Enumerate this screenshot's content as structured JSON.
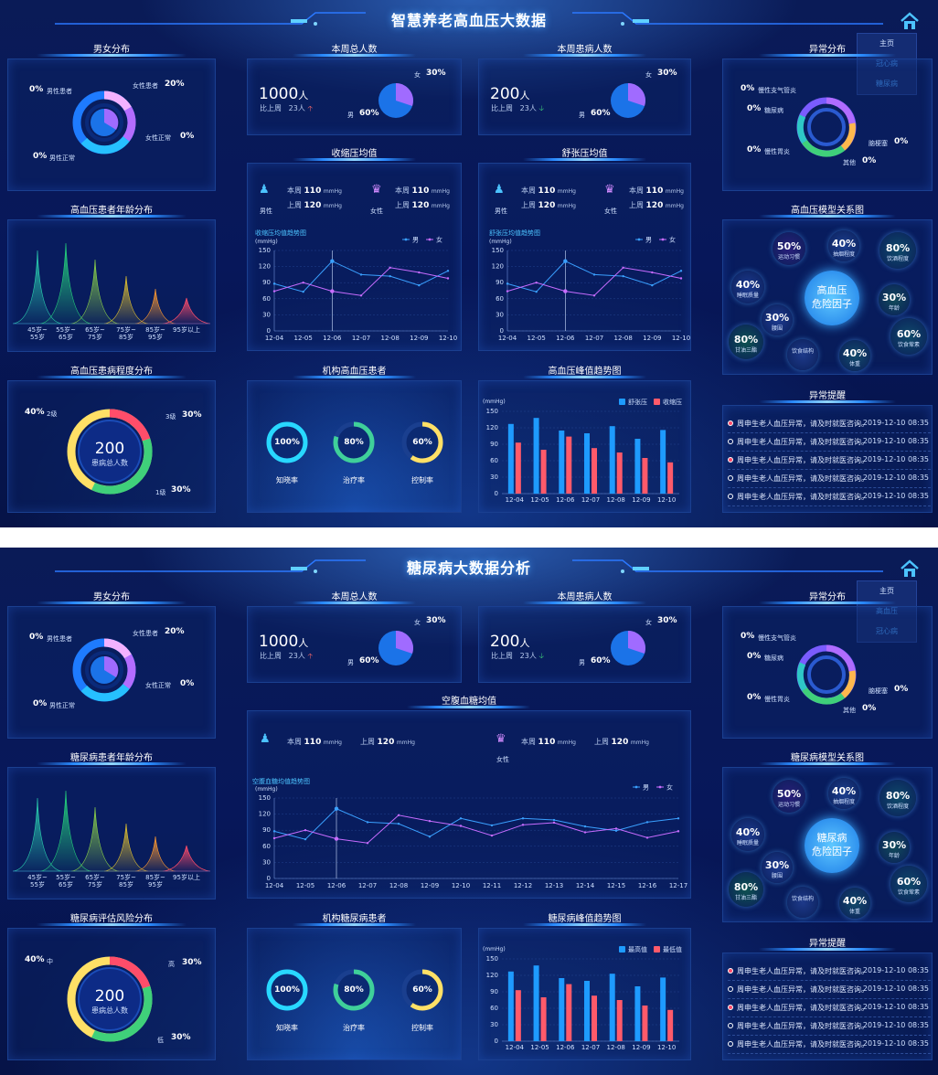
{
  "top": {
    "title": "智慧养老高血压大数据",
    "menu": [
      "主页",
      "冠心病",
      "糖尿病"
    ],
    "gender_title": "男女分布",
    "gender": {
      "male_patient": "男性患者",
      "male_patient_pct": "0%",
      "female_patient": "女性患者",
      "female_patient_pct": "20%",
      "female_normal": "女性正常",
      "female_normal_pct": "0%",
      "male_normal": "男性正常",
      "male_normal_pct": "0%"
    },
    "age_title": "高血压患者年龄分布",
    "age_labels": [
      "45岁~\n55岁",
      "55岁~\n65岁",
      "65岁~\n75岁",
      "75岁~\n85岁",
      "85岁~\n95岁",
      "95岁以上"
    ],
    "severity_title": "高血压患病程度分布",
    "severity": {
      "center_value": "200",
      "center_label": "患病总人数",
      "l2": "2级",
      "l2_pct": "40%",
      "l3": "3级",
      "l3_pct": "30%",
      "l1": "1级",
      "l1_pct": "30%"
    },
    "weekly_total_title": "本周总人数",
    "weekly_total": {
      "value": "1000",
      "unit": "人",
      "compare": "比上周",
      "delta": "23人",
      "female": "女",
      "female_pct": "30%",
      "male": "男",
      "male_pct": "60%"
    },
    "weekly_sick_title": "本周患病人数",
    "weekly_sick": {
      "value": "200",
      "unit": "人",
      "compare": "比上周",
      "delta": "23人",
      "female": "女",
      "female_pct": "30%",
      "male": "男",
      "male_pct": "60%"
    },
    "sys_title": "收缩压均值",
    "dia_title": "舒张压均值",
    "bp": {
      "this_week": "本周",
      "last_week": "上周",
      "val1": "110",
      "val2": "120",
      "unit": "mmHg",
      "male": "男性",
      "female": "女性"
    },
    "sys_chart_title": "收缩压均值趋势图",
    "dia_chart_title": "舒张压均值趋势图",
    "mmhg": "(mmHg)",
    "org_title": "机构高血压患者",
    "org": [
      {
        "pct": "100%",
        "label": "知晓率"
      },
      {
        "pct": "80%",
        "label": "治疗率"
      },
      {
        "pct": "60%",
        "label": "控制率"
      }
    ],
    "peak_title": "高血压峰值趋势图",
    "peak_legend": [
      "舒张压",
      "收缩压"
    ],
    "abnormal_title": "异常分布",
    "abnormal": {
      "a1": "慢性支气管炎",
      "a1_pct": "0%",
      "a2": "糖尿病",
      "a2_pct": "0%",
      "a3": "慢性胃炎",
      "a3_pct": "0%",
      "a4": "脑梗塞",
      "a4_pct": "0%",
      "a5": "其他",
      "a5_pct": "0%"
    },
    "model_title": "高血压模型关系图",
    "model_center": "高血压\n危险因子",
    "model": [
      {
        "pct": "50%",
        "label": "运动习惯"
      },
      {
        "pct": "40%",
        "label": "抽烟程度"
      },
      {
        "pct": "80%",
        "label": "饮酒程度"
      },
      {
        "pct": "40%",
        "label": "睡眠质量"
      },
      {
        "pct": "30%",
        "label": "年龄"
      },
      {
        "pct": "30%",
        "label": "腰围"
      },
      {
        "pct": "80%",
        "label": "甘油三酯"
      },
      {
        "pct": "",
        "label": "饮食结构"
      },
      {
        "pct": "40%",
        "label": "体重"
      },
      {
        "pct": "60%",
        "label": "饮食荤素"
      }
    ],
    "alert_title": "异常提醒",
    "alerts": [
      {
        "msg": "周申生老人血压异常，请及时就医咨询。",
        "time": "2019-12-10 08:35",
        "red": true
      },
      {
        "msg": "周申生老人血压异常，请及时就医咨询。",
        "time": "2019-12-10 08:35",
        "red": false
      },
      {
        "msg": "周申生老人血压异常，请及时就医咨询。",
        "time": "2019-12-10 08:35",
        "red": true
      },
      {
        "msg": "周申生老人血压异常，请及时就医咨询。",
        "time": "2019-12-10 08:35",
        "red": false
      },
      {
        "msg": "周申生老人血压异常，请及时就医咨询。",
        "time": "2019-12-10 08:35",
        "red": false
      }
    ]
  },
  "bottom": {
    "title": "糖尿病大数据分析",
    "menu": [
      "主页",
      "高血压",
      "冠心病"
    ],
    "gender_title": "男女分布",
    "gender": {
      "male_patient": "男性患者",
      "male_patient_pct": "0%",
      "female_patient": "女性患者",
      "female_patient_pct": "20%",
      "female_normal": "女性正常",
      "female_normal_pct": "0%",
      "male_normal": "男性正常",
      "male_normal_pct": "0%"
    },
    "age_title": "糖尿病患者年龄分布",
    "age_labels": [
      "45岁~\n55岁",
      "55岁~\n65岁",
      "65岁~\n75岁",
      "75岁~\n85岁",
      "85岁~\n95岁",
      "95岁以上"
    ],
    "severity_title": "糖尿病评估风险分布",
    "severity": {
      "center_value": "200",
      "center_label": "患病总人数",
      "l2": "中",
      "l2_pct": "40%",
      "l3": "高",
      "l3_pct": "30%",
      "l1": "低",
      "l1_pct": "30%"
    },
    "weekly_total_title": "本周总人数",
    "weekly_total": {
      "value": "1000",
      "unit": "人",
      "compare": "比上周",
      "delta": "23人",
      "female": "女",
      "female_pct": "30%",
      "male": "男",
      "male_pct": "60%"
    },
    "weekly_sick_title": "本周患病人数",
    "weekly_sick": {
      "value": "200",
      "unit": "人",
      "compare": "比上周",
      "delta": "23人",
      "female": "女",
      "female_pct": "30%",
      "male": "男",
      "male_pct": "60%"
    },
    "glucose_title": "空腹血糖均值",
    "bp": {
      "this_week": "本周",
      "last_week": "上周",
      "val1": "110",
      "val2": "120",
      "unit": "mmHg",
      "female": "女性"
    },
    "glucose_chart_title": "空腹血糖均值趋势图",
    "mmhg": "(mmHg)",
    "org_title": "机构糖尿病患者",
    "org": [
      {
        "pct": "100%",
        "label": "知晓率"
      },
      {
        "pct": "80%",
        "label": "治疗率"
      },
      {
        "pct": "60%",
        "label": "控制率"
      }
    ],
    "peak_title": "糖尿病峰值趋势图",
    "peak_legend": [
      "最高值",
      "最低值"
    ],
    "abnormal_title": "异常分布",
    "abnormal": {
      "a1": "慢性支气管炎",
      "a1_pct": "0%",
      "a2": "糖尿病",
      "a2_pct": "0%",
      "a3": "慢性胃炎",
      "a3_pct": "0%",
      "a4": "脑梗塞",
      "a4_pct": "0%",
      "a5": "其他",
      "a5_pct": "0%"
    },
    "model_title": "糖尿病模型关系图",
    "model_center": "糖尿病\n危险因子",
    "model": [
      {
        "pct": "50%",
        "label": "运动习惯"
      },
      {
        "pct": "40%",
        "label": "抽烟程度"
      },
      {
        "pct": "80%",
        "label": "饮酒程度"
      },
      {
        "pct": "40%",
        "label": "睡眠质量"
      },
      {
        "pct": "30%",
        "label": "年龄"
      },
      {
        "pct": "30%",
        "label": "腰围"
      },
      {
        "pct": "80%",
        "label": "甘油三酯"
      },
      {
        "pct": "",
        "label": "饮食结构"
      },
      {
        "pct": "40%",
        "label": "体重"
      },
      {
        "pct": "60%",
        "label": "饮食荤素"
      }
    ],
    "alert_title": "异常提醒",
    "alerts": [
      {
        "msg": "周申生老人血压异常，请及时就医咨询。",
        "time": "2019-12-10 08:35",
        "red": true
      },
      {
        "msg": "周申生老人血压异常，请及时就医咨询。",
        "time": "2019-12-10 08:35",
        "red": false
      },
      {
        "msg": "周申生老人血压异常，请及时就医咨询。",
        "time": "2019-12-10 08:35",
        "red": true
      },
      {
        "msg": "周申生老人血压异常，请及时就医咨询。",
        "time": "2019-12-10 08:35",
        "red": false
      },
      {
        "msg": "周申生老人血压异常，请及时就医咨询。",
        "time": "2019-12-10 08:35",
        "red": false
      }
    ]
  },
  "colors": {
    "male_line": "#3aa0ff",
    "female_line": "#c86cff",
    "bar_blue": "#1e9bff",
    "bar_red": "#ff5a6a",
    "yellow": "#ffe066",
    "red": "#ff4d6a",
    "green": "#3fd07a"
  },
  "chart_data": [
    {
      "type": "line",
      "title": "收缩压均值趋势图",
      "ylabel": "(mmHg)",
      "x": [
        "12-04",
        "12-05",
        "12-06",
        "12-07",
        "12-08",
        "12-09",
        "12-10"
      ],
      "ylim": [
        0,
        150
      ],
      "series": [
        {
          "name": "男",
          "values": [
            88,
            73,
            130,
            105,
            102,
            85,
            112
          ]
        },
        {
          "name": "女",
          "values": [
            74,
            90,
            74,
            66,
            118,
            109,
            98
          ]
        }
      ]
    },
    {
      "type": "line",
      "title": "舒张压均值趋势图",
      "ylabel": "(mmHg)",
      "x": [
        "12-04",
        "12-05",
        "12-06",
        "12-07",
        "12-08",
        "12-09",
        "12-10"
      ],
      "ylim": [
        0,
        150
      ],
      "series": [
        {
          "name": "男",
          "values": [
            88,
            73,
            130,
            105,
            102,
            85,
            112
          ]
        },
        {
          "name": "女",
          "values": [
            74,
            90,
            74,
            66,
            118,
            109,
            98
          ]
        }
      ]
    },
    {
      "type": "bar",
      "title": "高血压峰值趋势图",
      "ylabel": "(mmHg)",
      "categories": [
        "12-04",
        "12-05",
        "12-06",
        "12-07",
        "12-08",
        "12-09",
        "12-10"
      ],
      "ylim": [
        0,
        150
      ],
      "series": [
        {
          "name": "舒张压",
          "values": [
            127,
            138,
            115,
            110,
            123,
            100,
            116
          ]
        },
        {
          "name": "收缩压",
          "values": [
            93,
            80,
            104,
            83,
            75,
            65,
            57
          ]
        }
      ]
    },
    {
      "type": "line",
      "title": "空腹血糖均值趋势图",
      "ylabel": "(mmHg)",
      "x": [
        "12-04",
        "12-05",
        "12-06",
        "12-07",
        "12-08",
        "12-09",
        "12-10",
        "12-11",
        "12-12",
        "12-13",
        "12-14",
        "12-15",
        "12-16",
        "12-17"
      ],
      "ylim": [
        0,
        150
      ],
      "series": [
        {
          "name": "男",
          "values": [
            88,
            73,
            130,
            105,
            102,
            78,
            112,
            99,
            112,
            109,
            97,
            89,
            105,
            112
          ]
        },
        {
          "name": "女",
          "values": [
            75,
            90,
            74,
            66,
            118,
            107,
            98,
            80,
            100,
            104,
            86,
            93,
            76,
            88
          ]
        }
      ]
    },
    {
      "type": "bar",
      "title": "糖尿病峰值趋势图",
      "ylabel": "(mmHg)",
      "categories": [
        "12-04",
        "12-05",
        "12-06",
        "12-07",
        "12-08",
        "12-09",
        "12-10"
      ],
      "ylim": [
        0,
        150
      ],
      "series": [
        {
          "name": "最高值",
          "values": [
            127,
            138,
            115,
            110,
            123,
            100,
            116
          ]
        },
        {
          "name": "最低值",
          "values": [
            93,
            80,
            104,
            83,
            75,
            65,
            57
          ]
        }
      ]
    }
  ]
}
